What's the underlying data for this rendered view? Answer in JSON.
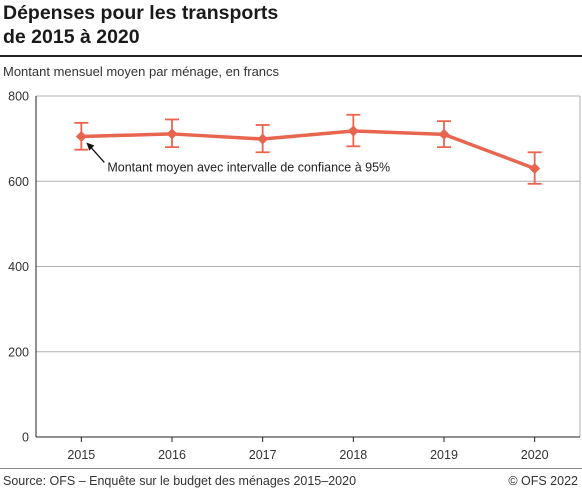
{
  "header": {
    "title_line1": "Dépenses pour les transports",
    "title_line2": "de 2015 à 2020",
    "subtitle": "Montant mensuel moyen par ménage, en francs"
  },
  "footer": {
    "source": "Source: OFS – Enquête sur le budget des ménages 2015–2020",
    "copyright": "© OFS 2022"
  },
  "colors": {
    "series": "#e8654f",
    "grid": "#b0b0b0",
    "axis": "#222222"
  },
  "chart_data": {
    "type": "line",
    "title": "Dépenses pour les transports de 2015 à 2020",
    "ylabel": "Montant mensuel moyen par ménage, en francs",
    "xlabel": "",
    "categories": [
      "2015",
      "2016",
      "2017",
      "2018",
      "2019",
      "2020"
    ],
    "ylim": [
      0,
      800
    ],
    "yticks": [
      0,
      200,
      400,
      600,
      800
    ],
    "grid": true,
    "series": [
      {
        "values": [
          705,
          711,
          699,
          718,
          710,
          630
        ],
        "ci_low": [
          674,
          680,
          668,
          682,
          680,
          594
        ],
        "ci_high": [
          737,
          745,
          732,
          756,
          741,
          668
        ],
        "marker": "diamond"
      }
    ],
    "annotation": {
      "text": "Montant moyen avec intervalle de confiance à 95%",
      "points_to": "2015"
    }
  }
}
